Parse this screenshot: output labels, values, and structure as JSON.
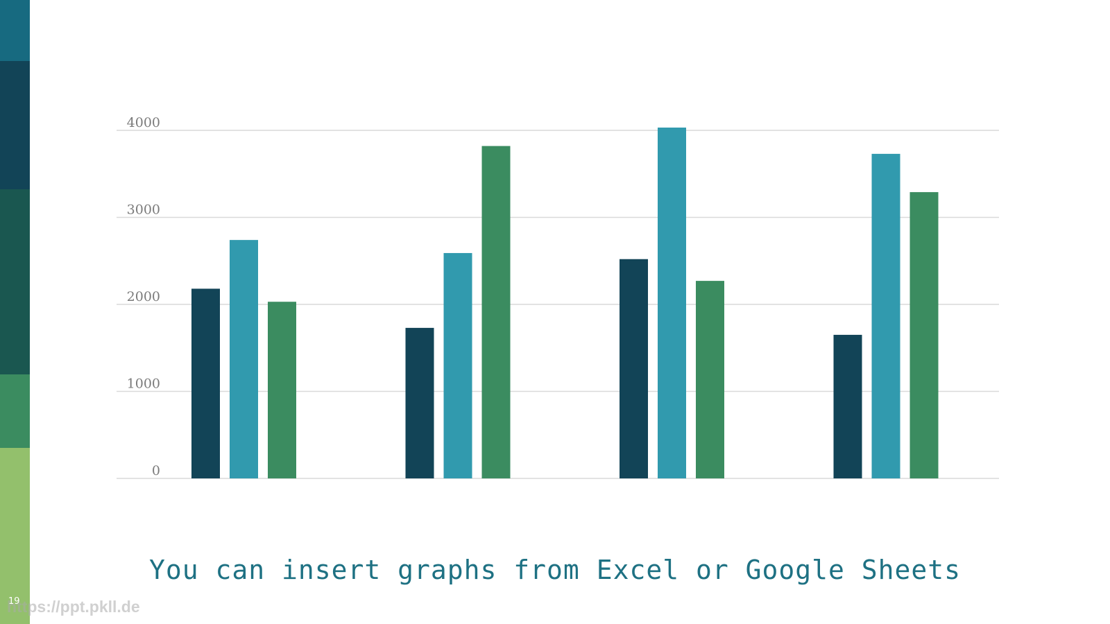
{
  "slide": {
    "caption": "You can insert graphs from Excel or Google Sheets",
    "page_number": "19",
    "watermark": "https://ppt.pkll.de"
  },
  "side_strip_colors": [
    "#176a80",
    "#124457",
    "#1a5750",
    "#3b8c60",
    "#93c06c"
  ],
  "chart_data": {
    "type": "bar",
    "categories": [
      "",
      "",
      "",
      ""
    ],
    "series": [
      {
        "color": "#124457",
        "values": [
          2180,
          1730,
          2520,
          1650
        ]
      },
      {
        "color": "#319aae",
        "values": [
          2740,
          2590,
          4050,
          3730
        ]
      },
      {
        "color": "#3b8c60",
        "values": [
          2030,
          3820,
          2270,
          3290
        ]
      }
    ],
    "ylim": [
      0,
      4000
    ],
    "yticks": [
      "0",
      "1000",
      "2000",
      "3000",
      "4000"
    ],
    "grid": true,
    "gridline_color": "#d9d9d9",
    "title": "",
    "xlabel": "",
    "ylabel": ""
  }
}
